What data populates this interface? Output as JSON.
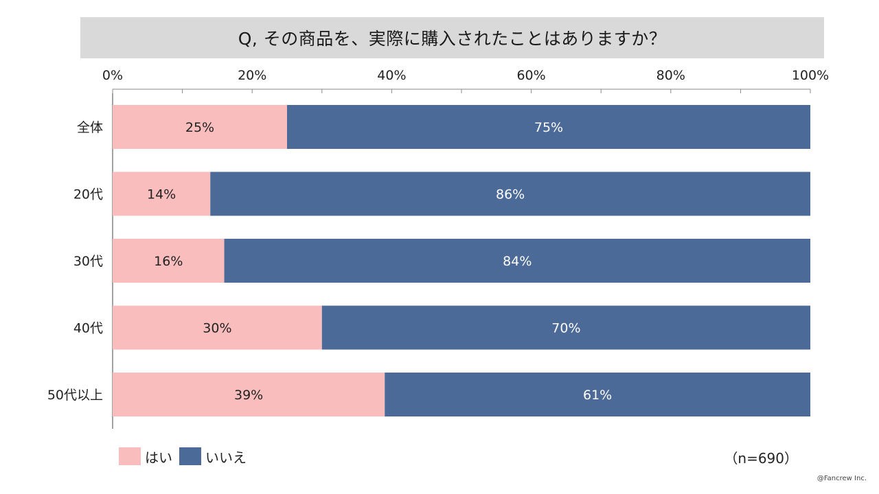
{
  "title": "Q, その商品を、実際に購入されたことはありますか？",
  "colors": {
    "yes": "#f9bdbe",
    "no": "#4c6a98",
    "yes_text": "#222222",
    "no_text": "#ffffff"
  },
  "chart_data": {
    "type": "bar",
    "orientation": "horizontal",
    "stacked": true,
    "percent": true,
    "categories": [
      "全体",
      "20代",
      "30代",
      "40代",
      "50代以上"
    ],
    "series": [
      {
        "name": "はい",
        "values": [
          25,
          14,
          16,
          30,
          39
        ]
      },
      {
        "name": "いいえ",
        "values": [
          75,
          86,
          84,
          70,
          61
        ]
      }
    ],
    "xlim": [
      0,
      100
    ],
    "x_ticks": [
      "0%",
      "20%",
      "40%",
      "60%",
      "80%",
      "100%"
    ],
    "data_labels": [
      [
        "25%",
        "14%",
        "16%",
        "30%",
        "39%"
      ],
      [
        "75%",
        "86%",
        "84%",
        "70%",
        "61%"
      ]
    ],
    "legend_position": "bottom-left",
    "grid": false
  },
  "legend": {
    "yes_label": "はい",
    "no_label": "いいえ"
  },
  "note": "（n=690）",
  "copyright": "@Fancrew Inc."
}
